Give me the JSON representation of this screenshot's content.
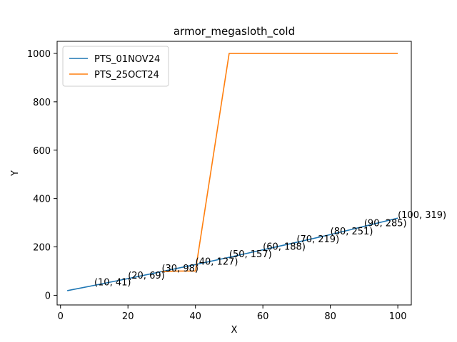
{
  "chart_data": {
    "type": "line",
    "title": "armor_megasloth_cold",
    "xlabel": "X",
    "ylabel": "Y",
    "xlim": [
      -1,
      104
    ],
    "ylim": [
      -40,
      1050
    ],
    "xticks": [
      0,
      20,
      40,
      60,
      80,
      100
    ],
    "yticks": [
      0,
      200,
      400,
      600,
      800,
      1000
    ],
    "grid": false,
    "legend_position": "top-left",
    "series": [
      {
        "name": "PTS_01NOV24",
        "color": "#1f77b4",
        "x": [
          2,
          10,
          20,
          30,
          40,
          50,
          60,
          70,
          80,
          90,
          100
        ],
        "y": [
          19,
          41,
          69,
          98,
          127,
          157,
          188,
          219,
          251,
          285,
          319
        ]
      },
      {
        "name": "PTS_25OCT24",
        "color": "#ff7f0e",
        "x": [
          30,
          35,
          40,
          50,
          100
        ],
        "y": [
          98,
          100,
          100,
          1000,
          1000
        ]
      }
    ],
    "annotations": [
      {
        "x": 10,
        "y": 41,
        "text": "(10, 41)"
      },
      {
        "x": 20,
        "y": 69,
        "text": "(20, 69)"
      },
      {
        "x": 30,
        "y": 98,
        "text": "(30, 98)"
      },
      {
        "x": 40,
        "y": 127,
        "text": "(40, 127)"
      },
      {
        "x": 50,
        "y": 157,
        "text": "(50, 157)"
      },
      {
        "x": 60,
        "y": 188,
        "text": "(60, 188)"
      },
      {
        "x": 70,
        "y": 219,
        "text": "(70, 219)"
      },
      {
        "x": 80,
        "y": 251,
        "text": "(80, 251)"
      },
      {
        "x": 90,
        "y": 285,
        "text": "(90, 285)"
      },
      {
        "x": 100,
        "y": 319,
        "text": "(100, 319)"
      }
    ]
  }
}
